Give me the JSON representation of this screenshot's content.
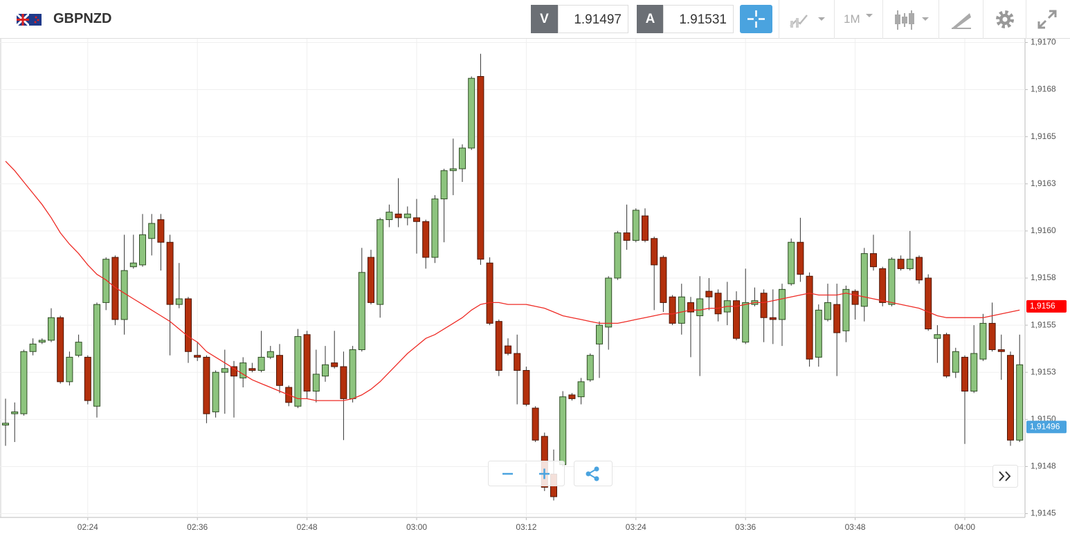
{
  "header": {
    "symbol": "GBPNZD",
    "bid_label": "V",
    "bid": "1.91497",
    "ask_label": "A",
    "ask": "1.91531",
    "timeframe": "1M"
  },
  "chart_data": {
    "type": "candlestick",
    "categories": [
      null,
      null,
      null,
      null,
      null,
      null,
      null,
      null,
      null,
      "02:24",
      null,
      null,
      null,
      null,
      null,
      null,
      null,
      null,
      null,
      null,
      null,
      "02:36",
      null,
      null,
      null,
      null,
      null,
      null,
      null,
      null,
      null,
      null,
      null,
      "02:48",
      null,
      null,
      null,
      null,
      null,
      null,
      null,
      null,
      null,
      null,
      null,
      "03:00",
      null,
      null,
      null,
      null,
      null,
      null,
      null,
      null,
      null,
      null,
      null,
      "03:12",
      null,
      null,
      null,
      null,
      null,
      null,
      null,
      null,
      null,
      null,
      null,
      "03:24",
      null,
      null,
      null,
      null,
      null,
      null,
      null,
      null,
      null,
      null,
      null,
      "03:36",
      null,
      null,
      null,
      null,
      null,
      null,
      null,
      null,
      null,
      null,
      null,
      "03:48",
      null,
      null,
      null,
      null,
      null,
      null,
      null,
      null,
      null,
      null,
      null,
      "04:00",
      null,
      null,
      null,
      null,
      null,
      null
    ],
    "open": [
      1.91497,
      1.91503,
      1.91503,
      1.91536,
      1.91541,
      1.91542,
      1.91554,
      1.9152,
      1.91534,
      1.91533,
      1.91507,
      1.91562,
      1.91586,
      1.91553,
      1.91581,
      1.91582,
      1.91596,
      1.91606,
      1.91594,
      1.91561,
      1.91564,
      1.91534,
      1.91533,
      1.91504,
      1.91525,
      1.91528,
      1.91522,
      1.91527,
      1.91526,
      1.91533,
      1.91534,
      1.91517,
      1.91507,
      1.91545,
      1.91515,
      1.91523,
      1.9153,
      1.91528,
      1.91511,
      1.91537,
      1.91586,
      1.91561,
      1.91606,
      1.91609,
      1.91607,
      1.91607,
      1.91605,
      1.91586,
      1.91617,
      1.91632,
      1.91633,
      1.91644,
      1.91682,
      1.91583,
      1.91552,
      1.91539,
      1.91535,
      1.91526,
      1.91506,
      1.91491,
      1.91471,
      1.91476,
      1.91513,
      1.91512,
      1.91521,
      1.9154,
      1.91549,
      1.91575,
      1.91599,
      1.91595,
      1.91608,
      1.91596,
      1.91586,
      1.91565,
      1.91551,
      1.91562,
      1.91555,
      1.91568,
      1.91567,
      1.91557,
      1.91563,
      1.91541,
      1.91561,
      1.91567,
      1.91554,
      1.91553,
      1.91572,
      1.91594,
      1.91576,
      1.91533,
      1.91553,
      1.91561,
      1.91547,
      1.91568,
      1.9156,
      1.91588,
      1.9158,
      1.91561,
      1.91585,
      1.9158,
      1.91586,
      1.91575,
      1.91543,
      1.91545,
      1.91525,
      1.91533,
      1.91515,
      1.91532,
      1.91551,
      1.91537,
      1.91534,
      1.91489
    ],
    "high": [
      1.91511,
      1.91509,
      1.91537,
      1.91543,
      1.91543,
      1.91559,
      1.91555,
      1.91536,
      1.91545,
      1.91534,
      1.91562,
      1.91586,
      1.91587,
      1.91598,
      1.91598,
      1.91609,
      1.91609,
      1.91609,
      1.91598,
      1.91583,
      1.91565,
      1.91541,
      1.91534,
      1.91526,
      1.91537,
      1.91531,
      1.91533,
      1.9153,
      1.91547,
      1.91539,
      1.9154,
      1.91518,
      1.91548,
      1.91547,
      1.91537,
      1.91539,
      1.91547,
      1.91536,
      1.91539,
      1.91591,
      1.9159,
      1.91607,
      1.91614,
      1.91628,
      1.91613,
      1.91617,
      1.91606,
      1.91619,
      1.91633,
      1.91649,
      1.91646,
      1.91682,
      1.91694,
      1.91586,
      1.91553,
      1.91543,
      1.91545,
      1.91528,
      1.91507,
      1.91493,
      1.91484,
      1.91515,
      1.91514,
      1.91522,
      1.91535,
      1.91552,
      1.91576,
      1.916,
      1.91614,
      1.91612,
      1.91612,
      1.91597,
      1.91587,
      1.91566,
      1.91572,
      1.91565,
      1.91576,
      1.91575,
      1.91569,
      1.91573,
      1.91568,
      1.9158,
      1.9157,
      1.91569,
      1.91569,
      1.91572,
      1.91596,
      1.91607,
      1.91578,
      1.91561,
      1.91572,
      1.91572,
      1.91571,
      1.91569,
      1.91591,
      1.91598,
      1.91581,
      1.91586,
      1.91587,
      1.916,
      1.91587,
      1.91577,
      1.9155,
      1.91546,
      1.91538,
      1.91534,
      1.9155,
      1.91556,
      1.91562,
      1.91545,
      1.91536,
      1.91545
    ],
    "low": [
      1.91486,
      1.91488,
      1.91502,
      1.91534,
      1.9154,
      1.91541,
      1.91519,
      1.91518,
      1.91533,
      1.91508,
      1.91501,
      1.91558,
      1.9155,
      1.91545,
      1.9158,
      1.91581,
      1.91587,
      1.91579,
      1.91534,
      1.91559,
      1.9153,
      1.91531,
      1.91498,
      1.91501,
      1.91503,
      1.91501,
      1.91517,
      1.91525,
      1.91525,
      1.91532,
      1.91514,
      1.91507,
      1.91506,
      1.91511,
      1.91509,
      1.9152,
      1.91527,
      1.91489,
      1.91509,
      1.91536,
      1.91561,
      1.91554,
      1.91602,
      1.91602,
      1.91603,
      1.91588,
      1.9158,
      1.91583,
      1.91594,
      1.91619,
      1.91626,
      1.91643,
      1.91582,
      1.9155,
      1.91523,
      1.91534,
      1.91508,
      1.91507,
      1.91488,
      1.91462,
      1.91457,
      1.91475,
      1.9151,
      1.91508,
      1.9152,
      1.91522,
      1.91537,
      1.91574,
      1.9159,
      1.91594,
      1.91594,
      1.91558,
      1.91557,
      1.9155,
      1.91545,
      1.91533,
      1.91523,
      1.91558,
      1.91552,
      1.9155,
      1.91542,
      1.9154,
      1.9156,
      1.91541,
      1.9154,
      1.91539,
      1.91571,
      1.91573,
      1.91528,
      1.91528,
      1.91552,
      1.91523,
      1.91541,
      1.91553,
      1.91552,
      1.91579,
      1.9156,
      1.9156,
      1.91579,
      1.91579,
      1.91572,
      1.91547,
      1.9153,
      1.91522,
      1.91522,
      1.91487,
      1.91514,
      1.91531,
      1.91536,
      1.91521,
      1.91486,
      1.91488
    ],
    "close": [
      1.91498,
      1.91504,
      1.91536,
      1.9154,
      1.91542,
      1.91554,
      1.9152,
      1.91533,
      1.91541,
      1.9151,
      1.91561,
      1.91585,
      1.91553,
      1.91579,
      1.91583,
      1.91598,
      1.91604,
      1.91594,
      1.91561,
      1.91564,
      1.91536,
      1.91533,
      1.91503,
      1.91525,
      1.91527,
      1.91523,
      1.9153,
      1.91526,
      1.91533,
      1.91536,
      1.91518,
      1.91509,
      1.91544,
      1.91515,
      1.91524,
      1.91529,
      1.91528,
      1.91511,
      1.91537,
      1.91578,
      1.91562,
      1.91606,
      1.9161,
      1.91607,
      1.91609,
      1.91605,
      1.91586,
      1.91617,
      1.91632,
      1.91633,
      1.91644,
      1.91681,
      1.91585,
      1.91551,
      1.91526,
      1.91535,
      1.91526,
      1.91508,
      1.91489,
      1.91464,
      1.91459,
      1.91512,
      1.91511,
      1.9152,
      1.91534,
      1.9155,
      1.91575,
      1.91599,
      1.91595,
      1.91611,
      1.91595,
      1.91582,
      1.91562,
      1.91551,
      1.91565,
      1.91557,
      1.91564,
      1.91565,
      1.91556,
      1.91563,
      1.91543,
      1.91562,
      1.91563,
      1.91554,
      1.91553,
      1.91569,
      1.91594,
      1.91577,
      1.91532,
      1.91558,
      1.91562,
      1.91546,
      1.91569,
      1.91561,
      1.91588,
      1.91581,
      1.91562,
      1.91585,
      1.9158,
      1.91585,
      1.91574,
      1.91548,
      1.91545,
      1.91523,
      1.91536,
      1.91515,
      1.91535,
      1.91551,
      1.91537,
      1.91536,
      1.91489,
      1.91529
    ],
    "up_color": "#8dc47e",
    "down_color": "#b3300c",
    "moving_average": {
      "color": "#ee2a24",
      "values": [
        1.91637,
        1.91632,
        1.91626,
        1.9162,
        1.91614,
        1.91607,
        1.91599,
        1.91593,
        1.91588,
        1.91582,
        1.91577,
        1.91574,
        1.9157,
        1.91567,
        1.91564,
        1.91561,
        1.91558,
        1.91555,
        1.91552,
        1.91548,
        1.91544,
        1.91541,
        1.91536,
        1.91533,
        1.9153,
        1.91527,
        1.91524,
        1.91521,
        1.91519,
        1.91517,
        1.91515,
        1.91513,
        1.91511,
        1.91511,
        1.9151,
        1.9151,
        1.9151,
        1.9151,
        1.91511,
        1.91513,
        1.91516,
        1.9152,
        1.91525,
        1.9153,
        1.91535,
        1.91539,
        1.91543,
        1.91545,
        1.91548,
        1.91551,
        1.91554,
        1.91558,
        1.91561,
        1.91562,
        1.91562,
        1.91561,
        1.91561,
        1.91561,
        1.9156,
        1.91559,
        1.91557,
        1.91555,
        1.91554,
        1.91553,
        1.91552,
        1.91551,
        1.91551,
        1.91551,
        1.91552,
        1.91553,
        1.91554,
        1.91555,
        1.91556,
        1.91556,
        1.91557,
        1.91558,
        1.91558,
        1.91559,
        1.91559,
        1.9156,
        1.9156,
        1.91561,
        1.91562,
        1.91562,
        1.91563,
        1.91564,
        1.91565,
        1.91566,
        1.91567,
        1.91566,
        1.91566,
        1.91566,
        1.91567,
        1.91566,
        1.91565,
        1.91564,
        1.91563,
        1.91562,
        1.91561,
        1.9156,
        1.91559,
        1.91557,
        1.91555,
        1.91554,
        1.91554,
        1.91554,
        1.91554,
        1.91554,
        1.91555,
        1.91556,
        1.91557,
        1.91558
      ]
    },
    "ylim": [
      1.91448,
      1.91702
    ],
    "yticks": [
      {
        "value": 1.917,
        "label": "1,9170"
      },
      {
        "value": 1.91675,
        "label": "1,9168"
      },
      {
        "value": 1.9165,
        "label": "1,9165"
      },
      {
        "value": 1.91625,
        "label": "1,9163"
      },
      {
        "value": 1.916,
        "label": "1,9160"
      },
      {
        "value": 1.91575,
        "label": "1,9158"
      },
      {
        "value": 1.9155,
        "label": "1,9155"
      },
      {
        "value": 1.91525,
        "label": "1,9153"
      },
      {
        "value": 1.915,
        "label": "1,9150"
      },
      {
        "value": 1.91475,
        "label": "1,9148"
      },
      {
        "value": 1.9145,
        "label": "1,9145"
      }
    ],
    "grid": true,
    "price_tags": [
      {
        "value": 1.9156,
        "label": "1,9156",
        "color": "#ff0000"
      },
      {
        "value": 1.91496,
        "label": "1,91496",
        "color": "#4aa3df"
      }
    ]
  }
}
